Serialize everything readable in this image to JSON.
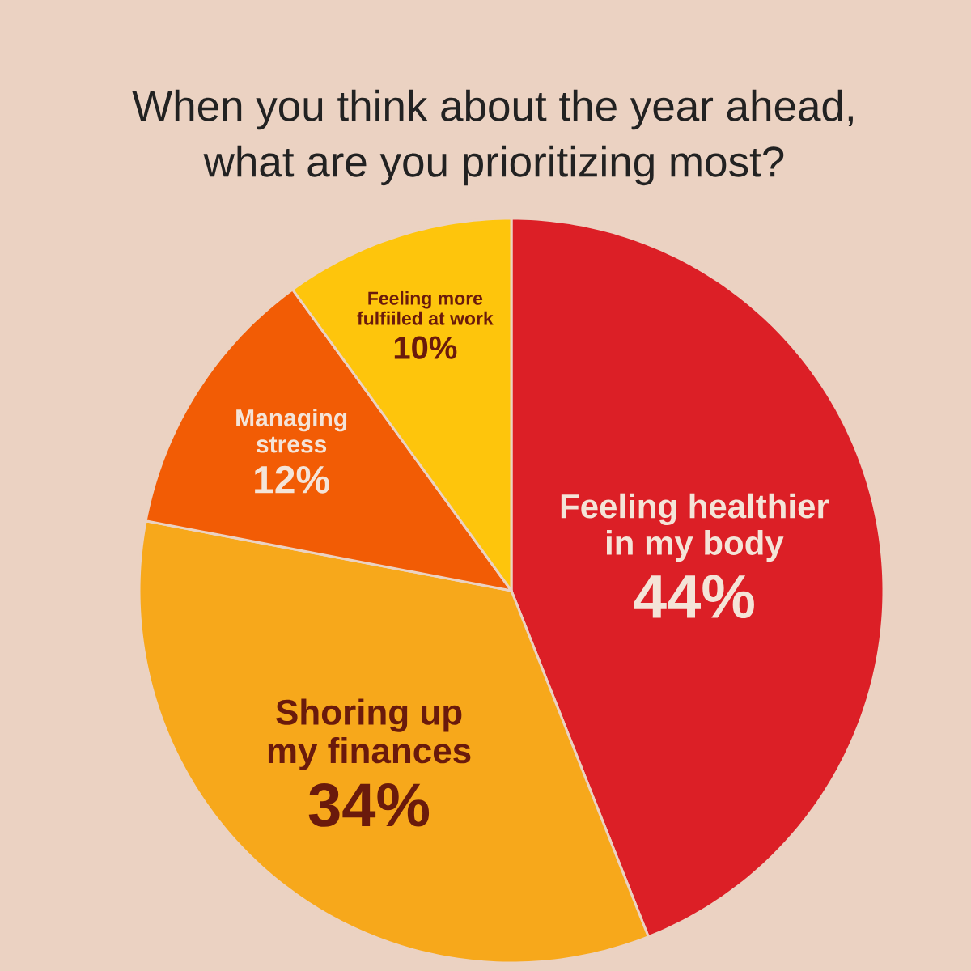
{
  "chart_data": {
    "type": "pie",
    "title": "When you think about the year ahead, what are you prioritizing most?",
    "categories": [
      "Feeling healthier in my body",
      "Shoring up my finances",
      "Managing stress",
      "Feeling more fulfiiled at work"
    ],
    "values": [
      44,
      34,
      12,
      10
    ],
    "colors": [
      "#dc1f26",
      "#f7a81b",
      "#f25c05",
      "#fec50c"
    ],
    "value_labels": [
      "44%",
      "34%",
      "12%",
      "10%"
    ]
  }
}
